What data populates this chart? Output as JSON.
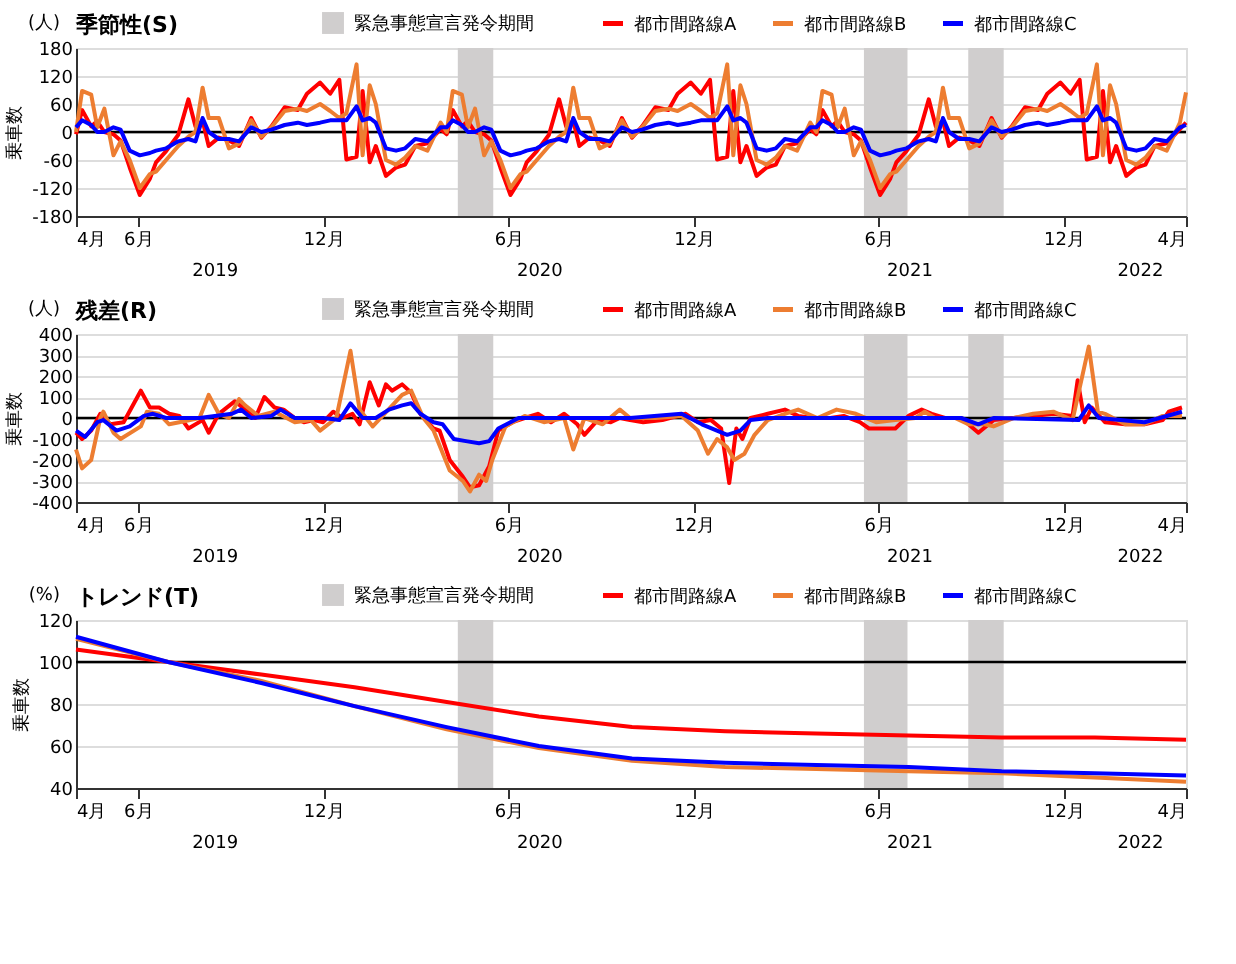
{
  "chart_data": [
    {
      "type": "line",
      "title": "季節性(S)",
      "ylabel": "乗車数",
      "annotations": [
        "(人)",
        "2019",
        "2020",
        "2021",
        "2022"
      ],
      "x": [
        "2019-04-01",
        "2019-04-07",
        "2019-04-16",
        "2019-04-22",
        "2019-04-29",
        "2019-05-08",
        "2019-05-15",
        "2019-05-24",
        "2019-06-03",
        "2019-06-13",
        "2019-06-19",
        "2019-06-29",
        "2019-07-11",
        "2019-07-21",
        "2019-07-28",
        "2019-08-04",
        "2019-08-10",
        "2019-08-20",
        "2019-08-30",
        "2019-09-09",
        "2019-09-21",
        "2019-10-01",
        "2019-10-11",
        "2019-10-24",
        "2019-11-06",
        "2019-11-15",
        "2019-11-28",
        "2019-12-08",
        "2019-12-17",
        "2019-12-24",
        "2020-01-03",
        "2020-01-09",
        "2020-01-16",
        "2020-01-22",
        "2020-02-01",
        "2020-02-11",
        "2020-02-20",
        "2020-03-01",
        "2020-03-13",
        "2020-03-26",
        "2020-04-01",
        "2020-04-07",
        "2020-04-16",
        "2020-04-22",
        "2020-04-29",
        "2020-05-08",
        "2020-05-15",
        "2020-05-24",
        "2020-06-03",
        "2020-06-13",
        "2020-06-19",
        "2020-06-29",
        "2020-07-11",
        "2020-07-21",
        "2020-07-28",
        "2020-08-04",
        "2020-08-10",
        "2020-08-20",
        "2020-08-30",
        "2020-09-09",
        "2020-09-21",
        "2020-10-01",
        "2020-10-11",
        "2020-10-24",
        "2020-11-06",
        "2020-11-15",
        "2020-11-28",
        "2020-12-08",
        "2020-12-17",
        "2020-12-24",
        "2021-01-03",
        "2021-01-09",
        "2021-01-16",
        "2021-01-22",
        "2021-02-01",
        "2021-02-11",
        "2021-02-20",
        "2021-03-01",
        "2021-03-13",
        "2021-03-26",
        "2021-04-01",
        "2021-04-07",
        "2021-04-16",
        "2021-04-22",
        "2021-04-29",
        "2021-05-08",
        "2021-05-15",
        "2021-05-24",
        "2021-06-03",
        "2021-06-13",
        "2021-06-19",
        "2021-06-29",
        "2021-07-11",
        "2021-07-21",
        "2021-07-28",
        "2021-08-04",
        "2021-08-10",
        "2021-08-20",
        "2021-08-30",
        "2021-09-09",
        "2021-09-21",
        "2021-10-01",
        "2021-10-11",
        "2021-10-24",
        "2021-11-06",
        "2021-11-15",
        "2021-11-28",
        "2021-12-08",
        "2021-12-17",
        "2021-12-24",
        "2022-01-03",
        "2022-01-09",
        "2022-01-16",
        "2022-01-22",
        "2022-02-01",
        "2022-02-11",
        "2022-02-20",
        "2022-03-01",
        "2022-03-13",
        "2022-03-26",
        "2022-04-01"
      ],
      "series": [
        {
          "name": "都市間路線A",
          "color": "#ff0000",
          "values": [
            -5,
            47,
            12,
            23,
            0,
            -5,
            -18,
            -76,
            -135,
            -100,
            -65,
            -41,
            -6,
            70,
            12,
            24,
            -30,
            -12,
            -18,
            -30,
            30,
            -12,
            12,
            53,
            47,
            82,
            106,
            82,
            112,
            -59,
            -53,
            88,
            -65,
            -30,
            -94,
            -76,
            -70,
            -30,
            -24,
            6,
            -5,
            47,
            12,
            23,
            0,
            -5,
            -18,
            -76,
            -135,
            -100,
            -65,
            -41,
            -6,
            70,
            12,
            24,
            -30,
            -12,
            -18,
            -30,
            30,
            -12,
            12,
            53,
            47,
            82,
            106,
            82,
            112,
            -59,
            -53,
            88,
            -65,
            -30,
            -94,
            -76,
            -70,
            -30,
            -24,
            6,
            -5,
            47,
            12,
            23,
            0,
            -5,
            -18,
            -76,
            -135,
            -100,
            -65,
            -41,
            -6,
            70,
            12,
            24,
            -30,
            -12,
            -18,
            -30,
            30,
            -12,
            12,
            53,
            47,
            82,
            106,
            82,
            112,
            -59,
            -53,
            88,
            -65,
            -30,
            -94,
            -76,
            -70,
            -30,
            -24,
            6,
            20
          ]
        },
        {
          "name": "都市間路線B",
          "color": "#ed7d31",
          "values": [
            0,
            88,
            80,
            10,
            50,
            -50,
            -20,
            -60,
            -120,
            -90,
            -85,
            -60,
            -30,
            -10,
            0,
            95,
            30,
            30,
            -35,
            -25,
            25,
            -10,
            10,
            45,
            50,
            45,
            60,
            45,
            30,
            40,
            145,
            -50,
            100,
            60,
            -60,
            -70,
            -55,
            -30,
            -40,
            20,
            0,
            88,
            80,
            10,
            50,
            -50,
            -20,
            -60,
            -120,
            -90,
            -85,
            -60,
            -30,
            -10,
            0,
            95,
            30,
            30,
            -35,
            -25,
            25,
            -10,
            10,
            45,
            50,
            45,
            60,
            45,
            30,
            40,
            145,
            -50,
            100,
            60,
            -60,
            -70,
            -55,
            -30,
            -40,
            20,
            0,
            88,
            80,
            10,
            50,
            -50,
            -20,
            -60,
            -120,
            -90,
            -85,
            -60,
            -30,
            -10,
            0,
            95,
            30,
            30,
            -35,
            -25,
            25,
            -10,
            10,
            45,
            50,
            45,
            60,
            45,
            30,
            40,
            145,
            -50,
            100,
            60,
            -60,
            -70,
            -55,
            -30,
            -40,
            20,
            85
          ]
        },
        {
          "name": "都市間路線C",
          "color": "#0000ff",
          "values": [
            10,
            25,
            15,
            0,
            0,
            10,
            5,
            -40,
            -50,
            -45,
            -40,
            -35,
            -20,
            -15,
            -20,
            30,
            0,
            -15,
            -15,
            -20,
            10,
            0,
            5,
            15,
            20,
            15,
            20,
            25,
            25,
            25,
            55,
            25,
            30,
            20,
            -35,
            -40,
            -35,
            -15,
            -20,
            10,
            10,
            25,
            15,
            0,
            0,
            10,
            5,
            -40,
            -50,
            -45,
            -40,
            -35,
            -20,
            -15,
            -20,
            30,
            0,
            -15,
            -15,
            -20,
            10,
            0,
            5,
            15,
            20,
            15,
            20,
            25,
            25,
            25,
            55,
            25,
            30,
            20,
            -35,
            -40,
            -35,
            -15,
            -20,
            10,
            10,
            25,
            15,
            0,
            0,
            10,
            5,
            -40,
            -50,
            -45,
            -40,
            -35,
            -20,
            -15,
            -20,
            30,
            0,
            -15,
            -15,
            -20,
            10,
            0,
            5,
            15,
            20,
            15,
            20,
            25,
            25,
            25,
            55,
            25,
            30,
            20,
            -35,
            -40,
            -35,
            -15,
            -20,
            10,
            15
          ]
        }
      ],
      "xlim": [
        "2019-04-01",
        "2022-04-01"
      ],
      "xticks": [
        {
          "value": "2019-04-01",
          "label": "4月"
        },
        {
          "value": "2019-06-01",
          "label": "6月"
        },
        {
          "value": "2019-12-01",
          "label": "12月"
        },
        {
          "value": "2020-06-01",
          "label": "6月"
        },
        {
          "value": "2020-12-01",
          "label": "12月"
        },
        {
          "value": "2021-06-01",
          "label": "6月"
        },
        {
          "value": "2021-12-01",
          "label": "12月"
        },
        {
          "value": "2022-04-01",
          "label": "4月"
        }
      ],
      "ylim": [
        -180,
        180
      ],
      "yticks": [
        -180,
        -120,
        -60,
        0,
        60,
        120,
        180
      ],
      "grid": "y",
      "legend": "top",
      "ref_lines": [
        {
          "axis": "y",
          "value": 0,
          "color": "#000000"
        }
      ],
      "bands": [
        {
          "axis": "x",
          "from": "2020-04-12",
          "to": "2020-05-17",
          "label": "緊急事態宣言発令期間",
          "color": "#d0cece"
        },
        {
          "axis": "x",
          "from": "2021-05-18",
          "to": "2021-06-30",
          "color": "#d0cece"
        },
        {
          "axis": "x",
          "from": "2021-08-29",
          "to": "2021-10-03",
          "color": "#d0cece"
        }
      ]
    },
    {
      "type": "line",
      "title": "残差(R)",
      "ylabel": "乗車数",
      "annotations": [
        "(人)",
        "2019",
        "2020",
        "2021",
        "2022"
      ],
      "series": [
        {
          "name": "都市間路線A",
          "color": "#ff0000",
          "x": [
            "2019-04-01",
            "2019-04-07",
            "2019-04-16",
            "2019-04-25",
            "2019-05-05",
            "2019-05-18",
            "2019-06-04",
            "2019-06-13",
            "2019-06-22",
            "2019-07-02",
            "2019-07-12",
            "2019-07-21",
            "2019-08-04",
            "2019-08-10",
            "2019-08-20",
            "2019-09-05",
            "2019-09-15",
            "2019-09-25",
            "2019-10-04",
            "2019-10-14",
            "2019-10-23",
            "2019-11-03",
            "2019-11-12",
            "2019-11-22",
            "2019-12-01",
            "2019-12-11",
            "2019-12-20",
            "2019-12-30",
            "2020-01-06",
            "2020-01-16",
            "2020-01-25",
            "2020-02-01",
            "2020-02-07",
            "2020-02-17",
            "2020-02-26",
            "2020-03-06",
            "2020-03-19",
            "2020-03-25",
            "2020-04-04",
            "2020-04-17",
            "2020-04-24",
            "2020-05-03",
            "2020-05-13",
            "2020-05-22",
            "2020-06-05",
            "2020-06-17",
            "2020-06-30",
            "2020-07-13",
            "2020-07-26",
            "2020-08-08",
            "2020-08-15",
            "2020-08-28",
            "2020-09-10",
            "2020-09-19",
            "2020-09-29",
            "2020-10-12",
            "2020-10-31",
            "2020-11-23",
            "2020-12-05",
            "2020-12-18",
            "2020-12-28",
            "2021-01-05",
            "2021-01-12",
            "2021-01-18",
            "2021-01-26",
            "2021-02-12",
            "2021-03-01",
            "2021-03-14",
            "2021-03-29",
            "2021-04-15",
            "2021-04-28",
            "2021-05-14",
            "2021-05-23",
            "2021-06-18",
            "2021-07-01",
            "2021-07-14",
            "2021-07-24",
            "2021-08-06",
            "2021-08-22",
            "2021-09-08",
            "2021-09-23",
            "2021-10-13",
            "2021-11-01",
            "2021-11-21",
            "2021-12-10",
            "2021-12-15",
            "2021-12-22",
            "2021-12-29",
            "2022-01-11",
            "2022-01-31",
            "2022-02-19",
            "2022-03-09",
            "2022-03-15",
            "2022-03-28"
          ],
          "values": [
            -70,
            -100,
            -60,
            20,
            -30,
            -20,
            130,
            50,
            50,
            20,
            10,
            -50,
            -10,
            -70,
            20,
            80,
            40,
            0,
            100,
            50,
            40,
            0,
            -20,
            -10,
            -20,
            30,
            0,
            20,
            -30,
            170,
            60,
            160,
            130,
            160,
            120,
            20,
            -50,
            -60,
            -200,
            -280,
            -330,
            -320,
            -230,
            -60,
            -20,
            0,
            20,
            -20,
            20,
            -30,
            -80,
            -10,
            -20,
            0,
            -10,
            -20,
            -10,
            20,
            -20,
            -10,
            -50,
            -310,
            -50,
            -100,
            0,
            20,
            40,
            10,
            0,
            0,
            10,
            -20,
            -50,
            -50,
            10,
            40,
            20,
            0,
            0,
            -70,
            -10,
            0,
            10,
            20,
            10,
            180,
            -20,
            50,
            -20,
            -30,
            -30,
            -10,
            30,
            50
          ]
        },
        {
          "name": "都市間路線B",
          "color": "#ed7d31",
          "x": [
            "2019-04-01",
            "2019-04-07",
            "2019-04-16",
            "2019-04-25",
            "2019-04-28",
            "2019-05-08",
            "2019-05-15",
            "2019-06-04",
            "2019-06-10",
            "2019-06-22",
            "2019-07-02",
            "2019-07-12",
            "2019-08-01",
            "2019-08-10",
            "2019-08-20",
            "2019-08-30",
            "2019-09-09",
            "2019-09-15",
            "2019-09-28",
            "2019-10-14",
            "2019-11-03",
            "2019-11-19",
            "2019-11-28",
            "2019-12-14",
            "2019-12-28",
            "2020-01-06",
            "2020-01-19",
            "2020-02-17",
            "2020-02-26",
            "2020-03-09",
            "2020-03-19",
            "2020-04-04",
            "2020-04-17",
            "2020-04-24",
            "2020-05-03",
            "2020-05-10",
            "2020-05-16",
            "2020-05-29",
            "2020-06-17",
            "2020-07-06",
            "2020-07-26",
            "2020-08-04",
            "2020-08-15",
            "2020-09-02",
            "2020-09-19",
            "2020-09-29",
            "2020-10-05",
            "2020-10-24",
            "2020-11-19",
            "2020-12-05",
            "2020-12-15",
            "2020-12-24",
            "2021-01-03",
            "2021-01-10",
            "2021-01-20",
            "2021-01-30",
            "2021-02-12",
            "2021-03-01",
            "2021-03-14",
            "2021-04-02",
            "2021-04-21",
            "2021-05-10",
            "2021-05-30",
            "2021-06-18",
            "2021-07-08",
            "2021-07-17",
            "2021-07-27",
            "2021-08-16",
            "2021-08-29",
            "2021-09-14",
            "2021-09-23",
            "2021-10-13",
            "2021-11-01",
            "2021-11-21",
            "2021-12-10",
            "2021-12-26",
            "2022-01-04",
            "2022-01-11",
            "2022-01-31",
            "2022-02-19",
            "2022-03-09",
            "2022-03-28"
          ],
          "values": [
            -150,
            -240,
            -200,
            0,
            30,
            -70,
            -100,
            -40,
            30,
            20,
            -30,
            -20,
            0,
            110,
            20,
            0,
            90,
            60,
            10,
            30,
            -20,
            -10,
            -60,
            0,
            320,
            40,
            -40,
            110,
            130,
            0,
            -60,
            -250,
            -300,
            -350,
            -270,
            -300,
            -200,
            -40,
            10,
            -20,
            0,
            -150,
            0,
            -30,
            40,
            0,
            0,
            0,
            10,
            -60,
            -170,
            -100,
            -140,
            -200,
            -170,
            -80,
            -10,
            20,
            40,
            0,
            40,
            20,
            -20,
            -10,
            0,
            30,
            0,
            0,
            -30,
            -30,
            -40,
            0,
            20,
            30,
            -10,
            340,
            30,
            20,
            -30,
            -30,
            10,
            10
          ]
        },
        {
          "name": "都市間路線C",
          "color": "#0000ff",
          "x": [
            "2019-04-01",
            "2019-04-10",
            "2019-04-22",
            "2019-04-28",
            "2019-05-11",
            "2019-05-24",
            "2019-06-07",
            "2019-06-16",
            "2019-06-29",
            "2019-08-01",
            "2019-09-02",
            "2019-09-11",
            "2019-09-21",
            "2019-10-11",
            "2019-10-20",
            "2019-11-03",
            "2019-12-01",
            "2019-12-17",
            "2019-12-28",
            "2020-01-09",
            "2020-01-22",
            "2020-02-04",
            "2020-02-17",
            "2020-02-26",
            "2020-03-06",
            "2020-03-19",
            "2020-03-28",
            "2020-04-08",
            "2020-04-20",
            "2020-05-03",
            "2020-05-13",
            "2020-05-22",
            "2020-06-11",
            "2020-08-02",
            "2020-09-29",
            "2020-11-19",
            "2020-12-09",
            "2021-01-03",
            "2021-01-16",
            "2021-01-26",
            "2021-02-12",
            "2021-04-15",
            "2021-06-18",
            "2021-08-22",
            "2021-09-08",
            "2021-09-23",
            "2021-12-16",
            "2021-12-26",
            "2022-01-05",
            "2022-02-19",
            "2022-03-28"
          ],
          "values": [
            -60,
            -90,
            -20,
            -10,
            -60,
            -40,
            10,
            20,
            0,
            0,
            20,
            40,
            0,
            10,
            40,
            0,
            0,
            -10,
            70,
            0,
            0,
            40,
            60,
            70,
            20,
            -20,
            -30,
            -100,
            -110,
            -120,
            -110,
            -50,
            0,
            0,
            0,
            20,
            -30,
            -80,
            -60,
            -10,
            0,
            0,
            0,
            0,
            -30,
            0,
            -10,
            60,
            0,
            -20,
            30
          ]
        }
      ],
      "xlim": [
        "2019-04-01",
        "2022-04-01"
      ],
      "xticks": [
        {
          "value": "2019-04-01",
          "label": "4月"
        },
        {
          "value": "2019-06-01",
          "label": "6月"
        },
        {
          "value": "2019-12-01",
          "label": "12月"
        },
        {
          "value": "2020-06-01",
          "label": "6月"
        },
        {
          "value": "2020-12-01",
          "label": "12月"
        },
        {
          "value": "2021-06-01",
          "label": "6月"
        },
        {
          "value": "2021-12-01",
          "label": "12月"
        },
        {
          "value": "2022-04-01",
          "label": "4月"
        }
      ],
      "ylim": [
        -400,
        400
      ],
      "yticks": [
        -400,
        -300,
        -200,
        -100,
        0,
        100,
        200,
        300,
        400
      ],
      "grid": "y",
      "legend": "top",
      "ref_lines": [
        {
          "axis": "y",
          "value": 0,
          "color": "#000000"
        }
      ],
      "bands": [
        {
          "axis": "x",
          "from": "2020-04-12",
          "to": "2020-05-17",
          "label": "緊急事態宣言発令期間",
          "color": "#d0cece"
        },
        {
          "axis": "x",
          "from": "2021-05-18",
          "to": "2021-06-30",
          "color": "#d0cece"
        },
        {
          "axis": "x",
          "from": "2021-08-29",
          "to": "2021-10-03",
          "color": "#d0cece"
        }
      ]
    },
    {
      "type": "line",
      "title": "トレンド(T)",
      "ylabel": "乗車数",
      "annotations": [
        "(%)",
        "2019",
        "2020",
        "2021",
        "2022"
      ],
      "x": [
        "2019-04-01",
        "2019-07-01",
        "2019-10-01",
        "2020-01-01",
        "2020-04-01",
        "2020-07-01",
        "2020-10-01",
        "2021-01-01",
        "2021-04-01",
        "2021-07-01",
        "2021-10-01",
        "2022-01-01",
        "2022-04-01"
      ],
      "series": [
        {
          "name": "都市間路線A",
          "color": "#ff0000",
          "values": [
            106,
            100,
            94,
            88,
            81,
            74,
            69,
            67,
            66,
            65,
            64,
            64,
            63
          ]
        },
        {
          "name": "都市間路線B",
          "color": "#ed7d31",
          "values": [
            111,
            100,
            91,
            79,
            68,
            59,
            53,
            50,
            49,
            48,
            47,
            45,
            43
          ]
        },
        {
          "name": "都市間路線C",
          "color": "#0000ff",
          "values": [
            112,
            100,
            90,
            79,
            69,
            60,
            54,
            52,
            51,
            50,
            48,
            47,
            46
          ]
        }
      ],
      "xlim": [
        "2019-04-01",
        "2022-04-01"
      ],
      "xticks": [
        {
          "value": "2019-04-01",
          "label": "4月"
        },
        {
          "value": "2019-06-01",
          "label": "6月"
        },
        {
          "value": "2019-12-01",
          "label": "12月"
        },
        {
          "value": "2020-06-01",
          "label": "6月"
        },
        {
          "value": "2020-12-01",
          "label": "12月"
        },
        {
          "value": "2021-06-01",
          "label": "6月"
        },
        {
          "value": "2021-12-01",
          "label": "12月"
        },
        {
          "value": "2022-04-01",
          "label": "4月"
        }
      ],
      "ylim": [
        40,
        120
      ],
      "yticks": [
        40,
        60,
        80,
        100,
        120
      ],
      "grid": "y",
      "legend": "top",
      "ref_lines": [
        {
          "axis": "y",
          "value": 100,
          "color": "#000000"
        }
      ],
      "bands": [
        {
          "axis": "x",
          "from": "2020-04-12",
          "to": "2020-05-17",
          "label": "緊急事態宣言発令期間",
          "color": "#d0cece"
        },
        {
          "axis": "x",
          "from": "2021-05-18",
          "to": "2021-06-30",
          "color": "#d0cece"
        },
        {
          "axis": "x",
          "from": "2021-08-29",
          "to": "2021-10-03",
          "color": "#d0cece"
        }
      ]
    }
  ]
}
